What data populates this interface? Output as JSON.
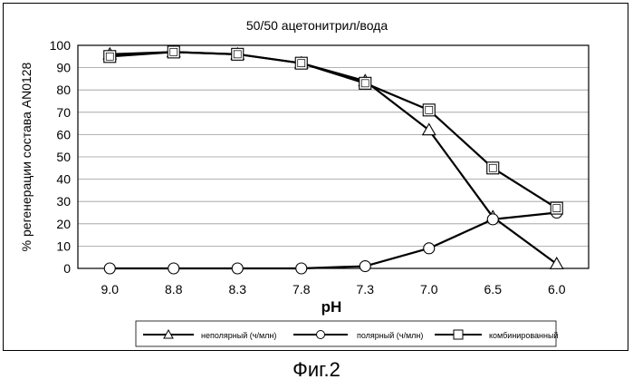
{
  "caption": "Фиг.2",
  "chart_data": {
    "type": "line",
    "title": "50/50 ацетонитрил/вода",
    "xlabel": "pH",
    "ylabel": "% регенерации состава AN0128",
    "categories": [
      "9.0",
      "8.8",
      "8.3",
      "7.8",
      "7.3",
      "7.0",
      "6.5",
      "6.0"
    ],
    "ylim": [
      0,
      100
    ],
    "yticks": [
      0,
      10,
      20,
      30,
      40,
      50,
      60,
      70,
      80,
      90,
      100
    ],
    "grid": true,
    "legend_position": "bottom",
    "series": [
      {
        "name": "неполярный (ч/млн)",
        "marker": "triangle",
        "values": [
          96,
          97,
          96,
          92,
          84,
          62,
          23,
          2
        ]
      },
      {
        "name": "полярный (ч/млн)",
        "marker": "circle",
        "values": [
          0,
          0,
          0,
          0,
          1,
          9,
          22,
          25
        ]
      },
      {
        "name": "комбинированный",
        "marker": "square",
        "values": [
          95,
          97,
          96,
          92,
          83,
          71,
          45,
          27
        ]
      }
    ]
  }
}
